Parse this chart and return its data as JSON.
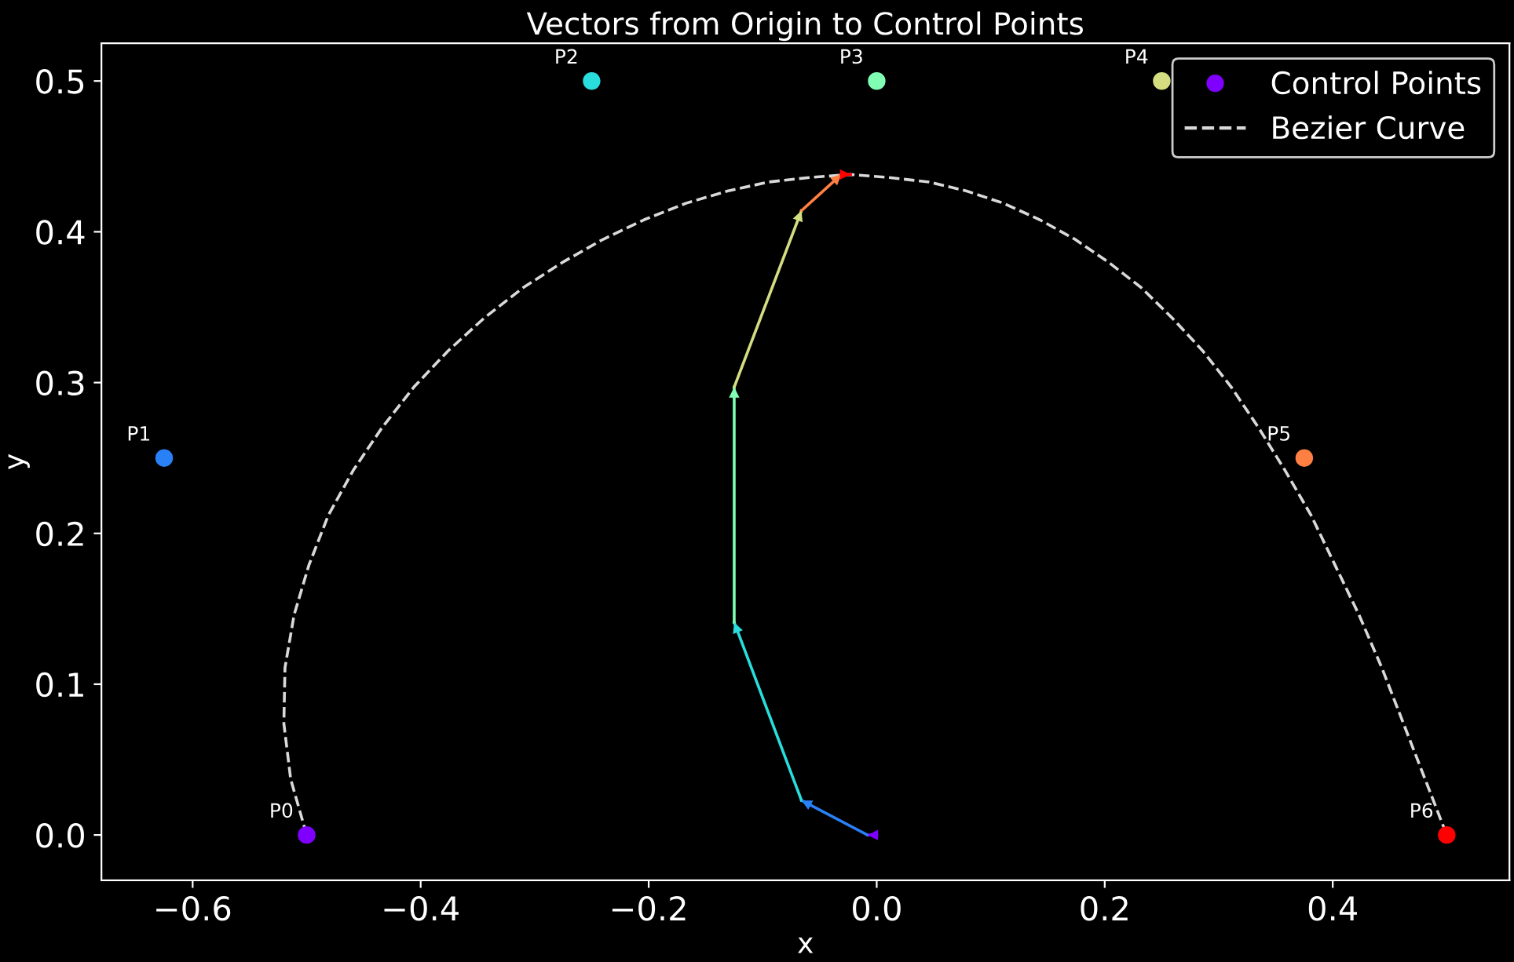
{
  "chart_data": {
    "type": "scatter",
    "title": "Vectors from Origin to Control Points",
    "xlabel": "x",
    "ylabel": "y",
    "xlim": [
      -0.68,
      0.555
    ],
    "ylim": [
      -0.03,
      0.525
    ],
    "xticks": [
      {
        "value": -0.6,
        "label": "−0.6"
      },
      {
        "value": -0.4,
        "label": "−0.4"
      },
      {
        "value": -0.2,
        "label": "−0.2"
      },
      {
        "value": 0,
        "label": "0.0"
      },
      {
        "value": 0.2,
        "label": "0.2"
      },
      {
        "value": 0.4,
        "label": "0.4"
      }
    ],
    "yticks": [
      {
        "value": 0,
        "label": "0.0"
      },
      {
        "value": 0.1,
        "label": "0.1"
      },
      {
        "value": 0.2,
        "label": "0.2"
      },
      {
        "value": 0.3,
        "label": "0.3"
      },
      {
        "value": 0.4,
        "label": "0.4"
      },
      {
        "value": 0.5,
        "label": "0.5"
      }
    ],
    "grid": false,
    "legend": "top right",
    "series": [
      {
        "name": "Control Points",
        "marker": "circle",
        "color": "#8000ff",
        "colors": [
          "#8000ff",
          "#2a80f6",
          "#2adddd",
          "#80ffb4",
          "#d4dd80",
          "#ff8042",
          "#ff0000"
        ],
        "x": [
          -0.5,
          -0.625,
          -0.25,
          0,
          0.25,
          0.375,
          0.5
        ],
        "values": [
          0,
          0.25,
          0.5,
          0.5,
          0.5,
          0.25,
          0
        ]
      },
      {
        "name": "Bezier Curve",
        "type": "line",
        "line_style": "dashed",
        "marker": "none",
        "color": "#d9d9d9",
        "x": [
          -0.5,
          -0.514,
          -0.52,
          -0.519,
          -0.511,
          -0.498,
          -0.481,
          -0.459,
          -0.434,
          -0.406,
          -0.376,
          -0.344,
          -0.31,
          -0.275,
          -0.24,
          -0.204,
          -0.167,
          -0.131,
          -0.095,
          -0.059,
          -0.023,
          0.011,
          0.046,
          0.079,
          0.111,
          0.143,
          0.174,
          0.203,
          0.232,
          0.259,
          0.286,
          0.311,
          0.335,
          0.358,
          0.381,
          0.402,
          0.423,
          0.443,
          0.462,
          0.481,
          0.5
        ],
        "values": [
          0.0,
          0.037,
          0.074,
          0.111,
          0.146,
          0.179,
          0.212,
          0.242,
          0.27,
          0.297,
          0.321,
          0.343,
          0.363,
          0.38,
          0.395,
          0.408,
          0.419,
          0.427,
          0.433,
          0.436,
          0.438,
          0.436,
          0.433,
          0.427,
          0.419,
          0.408,
          0.395,
          0.38,
          0.363,
          0.343,
          0.321,
          0.297,
          0.27,
          0.242,
          0.212,
          0.179,
          0.146,
          0.111,
          0.074,
          0.037,
          0.0
        ]
      },
      {
        "type": "line",
        "line_style": "solid",
        "color": "#8000ff",
        "x": [
          0,
          -0.008
        ],
        "values": [
          0,
          0
        ]
      },
      {
        "type": "line",
        "line_style": "solid",
        "color": "#2a80f6",
        "x": [
          -0.008,
          -0.066
        ],
        "values": [
          0,
          0.023
        ]
      },
      {
        "type": "line",
        "line_style": "solid",
        "color": "#2adddd",
        "x": [
          -0.066,
          -0.125
        ],
        "values": [
          0.023,
          0.141
        ]
      },
      {
        "type": "line",
        "line_style": "solid",
        "color": "#80ffb4",
        "x": [
          -0.125,
          -0.125
        ],
        "values": [
          0.141,
          0.297
        ]
      },
      {
        "type": "line",
        "line_style": "solid",
        "color": "#d4dd80",
        "x": [
          -0.125,
          -0.066
        ],
        "values": [
          0.297,
          0.414
        ]
      },
      {
        "type": "line",
        "line_style": "solid",
        "color": "#ff8042",
        "x": [
          -0.066,
          -0.031
        ],
        "values": [
          0.414,
          0.438
        ]
      },
      {
        "type": "line",
        "line_style": "solid",
        "color": "#ff0000",
        "x": [
          -0.031,
          -0.023
        ],
        "values": [
          0.438,
          0.438
        ]
      }
    ],
    "annotations": [
      {
        "text": "P0",
        "x": -0.5,
        "y": 0
      },
      {
        "text": "P1",
        "x": -0.625,
        "y": 0.25
      },
      {
        "text": "P2",
        "x": -0.25,
        "y": 0.5
      },
      {
        "text": "P3",
        "x": 0,
        "y": 0.5
      },
      {
        "text": "P4",
        "x": 0.25,
        "y": 0.5
      },
      {
        "text": "P5",
        "x": 0.375,
        "y": 0.25
      },
      {
        "text": "P6",
        "x": 0.5,
        "y": 0
      }
    ]
  }
}
